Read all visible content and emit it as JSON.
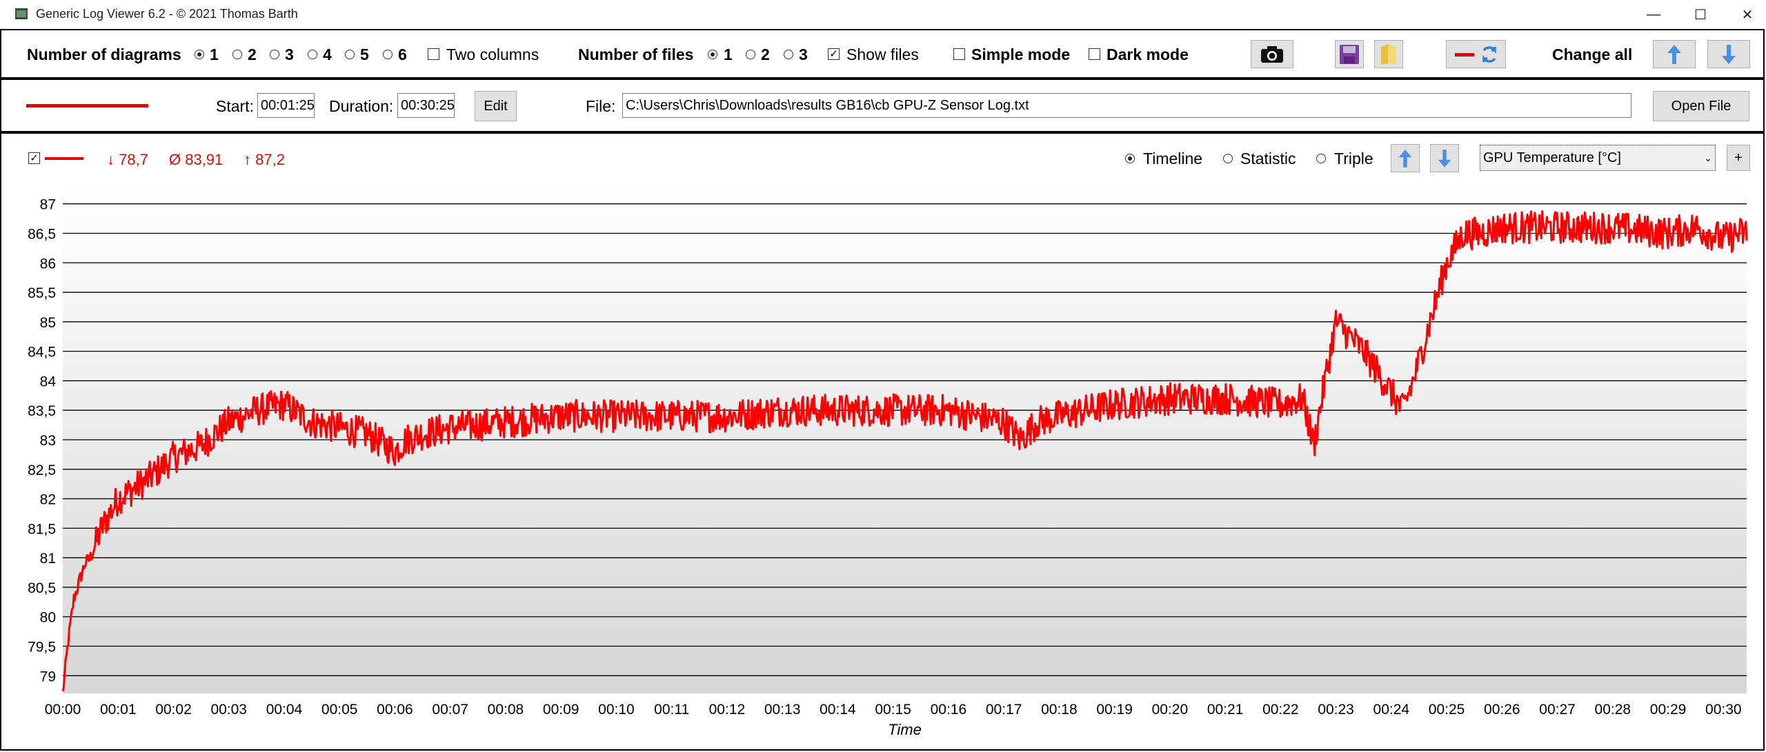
{
  "window": {
    "title": "Generic Log Viewer 6.2 - © 2021 Thomas Barth",
    "minimize_glyph": "—",
    "maximize_glyph": "☐",
    "close_glyph": "✕"
  },
  "toolbar": {
    "num_diagrams_label": "Number of diagrams",
    "diagram_options": [
      "1",
      "2",
      "3",
      "4",
      "5",
      "6"
    ],
    "diagram_selected": "1",
    "two_columns_label": "Two columns",
    "num_files_label": "Number of files",
    "file_options": [
      "1",
      "2",
      "3"
    ],
    "file_selected": "1",
    "show_files_label": "Show files",
    "simple_mode_label": "Simple mode",
    "dark_mode_label": "Dark mode",
    "change_all_label": "Change all",
    "icons": [
      "camera-icon",
      "save-icon",
      "folder-icon",
      "line-color-icon",
      "arrow-up-icon",
      "arrow-down-icon"
    ]
  },
  "file_row": {
    "start_label": "Start:",
    "start_value": "00:01:25",
    "duration_label": "Duration:",
    "duration_value": "00:30:25",
    "edit_label": "Edit",
    "file_label": "File:",
    "file_path": "C:\\Users\\Chris\\Downloads\\results GB16\\cb GPU-Z Sensor Log.txt",
    "open_file_label": "Open File",
    "line_color": "#e00000"
  },
  "diagram": {
    "min_label": "↓ 78,7",
    "avg_label": "Ø 83,91",
    "max_label": "↑ 87,2",
    "mode_timeline": "Timeline",
    "mode_statistic": "Statistic",
    "mode_triple": "Triple",
    "mode_selected": "Timeline",
    "sensor_select": "GPU Temperature [°C]",
    "add_label": "+"
  },
  "chart_data": {
    "type": "line",
    "title": "",
    "xlabel": "Time",
    "ylabel": "",
    "series": [
      {
        "name": "GPU Temperature [°C]",
        "color": "#ff0000"
      }
    ],
    "ylim": [
      78.7,
      87.3
    ],
    "xlim_minutes": [
      0,
      30.42
    ],
    "y_ticks": [
      "79",
      "79,5",
      "80",
      "80,5",
      "81",
      "81,5",
      "82",
      "82,5",
      "83",
      "83,5",
      "84",
      "84,5",
      "85",
      "85,5",
      "86",
      "86,5",
      "87"
    ],
    "x_ticks": [
      "00:00",
      "00:01",
      "00:02",
      "00:03",
      "00:04",
      "00:05",
      "00:06",
      "00:07",
      "00:08",
      "00:09",
      "00:10",
      "00:11",
      "00:12",
      "00:13",
      "00:14",
      "00:15",
      "00:16",
      "00:17",
      "00:18",
      "00:19",
      "00:20",
      "00:21",
      "00:22",
      "00:23",
      "00:24",
      "00:25",
      "00:26",
      "00:27",
      "00:28",
      "00:29",
      "00:30"
    ],
    "grid": true,
    "legend": "none",
    "x_minutes": [
      0,
      0.1,
      0.2,
      0.3,
      0.4,
      0.5,
      0.7,
      1.0,
      1.5,
      2.0,
      2.5,
      3.0,
      3.5,
      4.0,
      4.5,
      5.0,
      5.5,
      6.0,
      6.2,
      6.5,
      7.0,
      8.0,
      9.0,
      10.0,
      11.0,
      12.0,
      13.0,
      14.0,
      15.0,
      16.0,
      17.0,
      17.3,
      17.6,
      18.0,
      19.0,
      20.0,
      21.0,
      22.0,
      22.4,
      22.6,
      22.8,
      23.0,
      23.5,
      24.0,
      24.2,
      24.4,
      24.7,
      25.0,
      25.3,
      25.6,
      26.0,
      27.0,
      28.0,
      29.0,
      29.5,
      30.0,
      30.3,
      30.42
    ],
    "y_values": [
      78.7,
      79.6,
      80.3,
      80.6,
      80.9,
      81.0,
      81.5,
      82.0,
      82.3,
      82.7,
      82.9,
      83.3,
      83.5,
      83.6,
      83.3,
      83.2,
      83.1,
      82.8,
      83.0,
      83.1,
      83.2,
      83.3,
      83.4,
      83.4,
      83.4,
      83.4,
      83.5,
      83.5,
      83.5,
      83.5,
      83.3,
      83.0,
      83.3,
      83.4,
      83.6,
      83.7,
      83.7,
      83.6,
      83.7,
      82.9,
      84.0,
      85.0,
      84.5,
      83.8,
      83.5,
      84.0,
      85.0,
      86.0,
      86.5,
      86.5,
      86.6,
      86.6,
      86.6,
      86.5,
      86.6,
      86.4,
      86.5,
      86.5
    ]
  }
}
